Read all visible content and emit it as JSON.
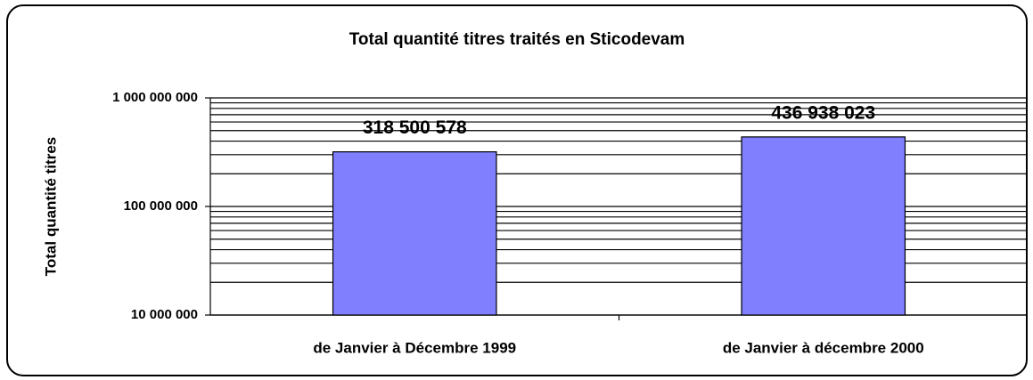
{
  "chart_data": {
    "type": "bar",
    "title": "Total quantité titres traités en Sticodevam",
    "y_label": "Total quantité titres",
    "categories": [
      "de Janvier à Décembre 1999",
      "de Janvier à décembre 2000"
    ],
    "values": [
      318500578,
      436938023
    ],
    "value_labels": [
      "318 500 578",
      "436 938 023"
    ],
    "color": "#8080ff",
    "log_scale": true,
    "ylim": [
      10000000,
      1000000000
    ],
    "yticks": [
      {
        "value": 10000000,
        "label": "10 000 000"
      },
      {
        "value": 100000000,
        "label": "100 000 000"
      },
      {
        "value": 1000000000,
        "label": "1 000 000 000"
      }
    ],
    "minor_yticks": [
      20000000,
      30000000,
      40000000,
      50000000,
      60000000,
      70000000,
      80000000,
      90000000,
      200000000,
      300000000,
      400000000,
      500000000,
      600000000,
      700000000,
      800000000,
      900000000
    ],
    "grid": true
  }
}
